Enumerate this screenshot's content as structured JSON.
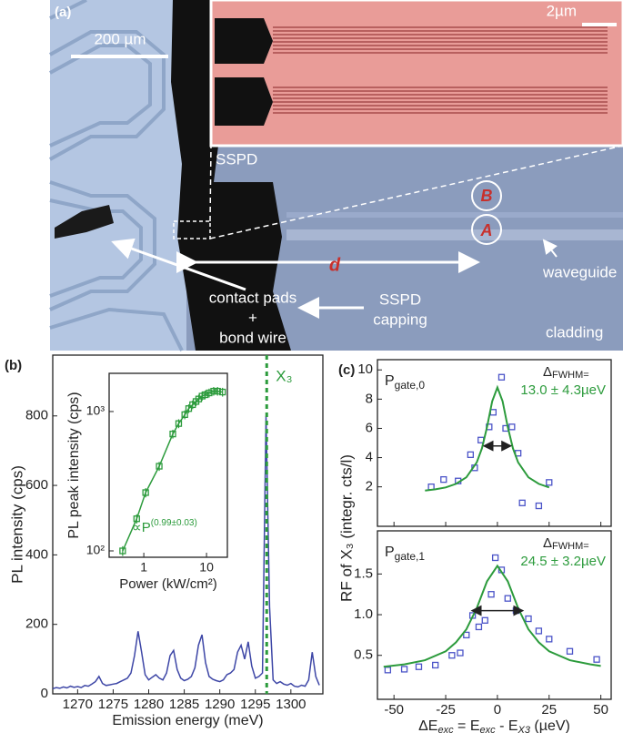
{
  "micrograph": {
    "panel_label": "(a)",
    "scale_bar": "200 µm",
    "inset_scale_bar": "2µm",
    "sspd": "SSPD",
    "spot_b": "B",
    "spot_a": "A",
    "distance": "d",
    "waveguide": "waveguide",
    "contact_pads": "contact pads",
    "plus": "+",
    "bond_wire": "bond wire",
    "capping_1": "SSPD",
    "capping_2": "capping",
    "cladding": "cladding"
  },
  "chart_data": [
    {
      "type": "line",
      "panel_label": "(b)",
      "x_label": "Emission energy (meV)",
      "y_label": "PL intensity (cps)",
      "x": [
        1266.5,
        1267,
        1267.5,
        1268,
        1268.5,
        1269,
        1269.5,
        1270,
        1270.5,
        1271,
        1271.5,
        1272,
        1272.5,
        1273,
        1273.5,
        1274,
        1274.5,
        1275,
        1275.5,
        1276,
        1276.5,
        1277,
        1277.5,
        1278,
        1278.5,
        1279,
        1279.5,
        1280,
        1280.5,
        1281,
        1281.5,
        1282,
        1282.5,
        1283,
        1283.5,
        1284,
        1284.5,
        1285,
        1285.5,
        1286,
        1286.5,
        1287,
        1287.5,
        1288,
        1288.5,
        1289,
        1289.5,
        1290,
        1290.5,
        1291,
        1291.5,
        1292,
        1292.5,
        1293,
        1293.5,
        1294,
        1294.5,
        1295,
        1295.5,
        1296,
        1296.5,
        1297,
        1297.5,
        1298,
        1298.5,
        1299,
        1299.5,
        1300,
        1300.5,
        1301,
        1301.5,
        1302,
        1302.5,
        1303,
        1303.5,
        1304
      ],
      "series": [
        {
          "color": "#3d46a6",
          "values": [
            15,
            18,
            16,
            20,
            17,
            22,
            19,
            21,
            18,
            24,
            22,
            28,
            35,
            50,
            30,
            24,
            26,
            28,
            30,
            35,
            40,
            45,
            60,
            110,
            180,
            120,
            55,
            40,
            48,
            55,
            45,
            40,
            60,
            110,
            125,
            70,
            45,
            38,
            42,
            50,
            75,
            140,
            170,
            90,
            50,
            42,
            38,
            35,
            40,
            55,
            60,
            70,
            120,
            140,
            100,
            150,
            80,
            45,
            50,
            60,
            800,
            250,
            40,
            30,
            35,
            28,
            25,
            30,
            22,
            20,
            25,
            22,
            40,
            120,
            50,
            25
          ]
        }
      ],
      "xlim": [
        1266.5,
        1304.5
      ],
      "ylim": [
        0,
        975
      ],
      "xticks": [
        1270,
        1275,
        1280,
        1285,
        1290,
        1295,
        1300
      ],
      "yticks": [
        0,
        200,
        400,
        600,
        800
      ],
      "annotations": [
        {
          "text": "X₃",
          "x": 1296.6,
          "color": "#2c9b3c"
        }
      ]
    },
    {
      "type": "scatter",
      "x_label": "Power (kW/cm²)",
      "y_label": "PL peak intensity (cps)",
      "log_x": true,
      "log_y": true,
      "x": [
        0.46,
        0.77,
        1.07,
        1.76,
        2.9,
        3.6,
        4.5,
        5.2,
        6,
        6.8,
        7.5,
        8.5,
        9.5,
        11,
        13,
        15,
        18
      ],
      "series": [
        {
          "color": "#2c9b3c",
          "values": [
            100,
            170,
            262,
            405,
            690,
            820,
            950,
            1050,
            1120,
            1180,
            1230,
            1290,
            1320,
            1360,
            1400,
            1400,
            1380
          ],
          "errors": [
            8,
            13,
            20,
            30,
            50,
            60,
            70,
            75,
            80,
            85,
            90,
            95,
            95,
            100,
            100,
            100,
            100
          ]
        }
      ],
      "connect": true,
      "xlim": [
        0.28,
        21.5
      ],
      "ylim": [
        90,
        1880
      ],
      "xticks": [
        1,
        10
      ],
      "yticks": [
        {
          "value": 100,
          "label": "10²"
        },
        {
          "value": 1000,
          "label": "10³"
        }
      ],
      "annotation": "∝P",
      "annotation_exponent": "(0.99±0.03)"
    },
    {
      "type": "scatter",
      "panel_label": "(c)",
      "label": "P",
      "label_sub": "gate,0",
      "fwhm_label": "Δ",
      "fwhm_label_sub": "FWHM=",
      "fwhm_text": "13.0 ± 4.3µeV",
      "x": [
        -32,
        -26,
        -19,
        -13,
        -11,
        -8,
        -4,
        -2,
        2,
        4,
        7,
        10,
        12,
        20,
        25
      ],
      "series": [
        {
          "color": "#4b54c8",
          "values": [
            2.0,
            2.5,
            2.4,
            4.2,
            3.3,
            5.2,
            6.1,
            7.1,
            9.5,
            6.0,
            6.1,
            4.3,
            0.9,
            0.7,
            2.3
          ]
        }
      ],
      "fit": {
        "color": "#2c9b3c",
        "x": [
          -35,
          -30,
          -25,
          -20,
          -15,
          -10,
          -7.5,
          -5,
          -2.5,
          0,
          2.5,
          5,
          7.5,
          10,
          15,
          20,
          25
        ],
        "values": [
          1.74,
          1.83,
          1.96,
          2.2,
          2.65,
          3.67,
          4.63,
          6.09,
          7.86,
          8.8,
          7.86,
          6.09,
          4.63,
          3.67,
          2.65,
          2.2,
          1.96
        ]
      },
      "fwhm": 13.0,
      "arrow_y": 4.8,
      "xlim": [
        -58,
        55
      ],
      "ylim": [
        -0.7,
        10.7
      ],
      "xticks": [
        -50,
        -25,
        0,
        25,
        50
      ],
      "yticks": [
        2,
        4,
        6,
        8,
        10
      ]
    },
    {
      "type": "scatter",
      "label": "P",
      "label_sub": "gate,1",
      "fwhm_label": "Δ",
      "fwhm_label_sub": "FWHM=",
      "fwhm_text": "24.5 ± 3.2µeV",
      "y_label": "RF of X₃ (integr. cts/l)",
      "x_label_parts": [
        "ΔE",
        "exc",
        " = E",
        "exc",
        " - E",
        "X3",
        " (µeV)"
      ],
      "x": [
        -53,
        -45,
        -38,
        -30,
        -22,
        -18,
        -15,
        -12,
        -9,
        -6,
        -3,
        -1,
        2,
        5,
        9,
        15,
        20,
        25,
        35,
        48
      ],
      "series": [
        {
          "color": "#4b54c8",
          "values": [
            0.32,
            0.33,
            0.36,
            0.38,
            0.5,
            0.53,
            0.75,
            0.99,
            0.85,
            0.93,
            1.25,
            1.7,
            1.55,
            1.2,
            1.05,
            0.95,
            0.8,
            0.7,
            0.55,
            0.45
          ]
        }
      ],
      "fit": {
        "color": "#2c9b3c",
        "x": [
          -55,
          -45,
          -35,
          -25,
          -20,
          -15,
          -10,
          -5,
          0,
          5,
          10,
          15,
          20,
          25,
          35,
          45,
          50
        ],
        "values": [
          0.36,
          0.39,
          0.44,
          0.55,
          0.66,
          0.82,
          1.08,
          1.41,
          1.6,
          1.41,
          1.08,
          0.82,
          0.66,
          0.55,
          0.44,
          0.39,
          0.37
        ]
      },
      "fwhm": 24.5,
      "arrow_y": 1.05,
      "xlim": [
        -58,
        55
      ],
      "ylim": [
        -0.04,
        2.03
      ],
      "xticks": [
        -50,
        -25,
        0,
        25,
        50
      ],
      "yticks": [
        {
          "value": 0.5,
          "label": "0.5"
        },
        {
          "value": 1,
          "label": "1.0"
        },
        {
          "value": 1.5,
          "label": "1.5"
        }
      ]
    }
  ]
}
